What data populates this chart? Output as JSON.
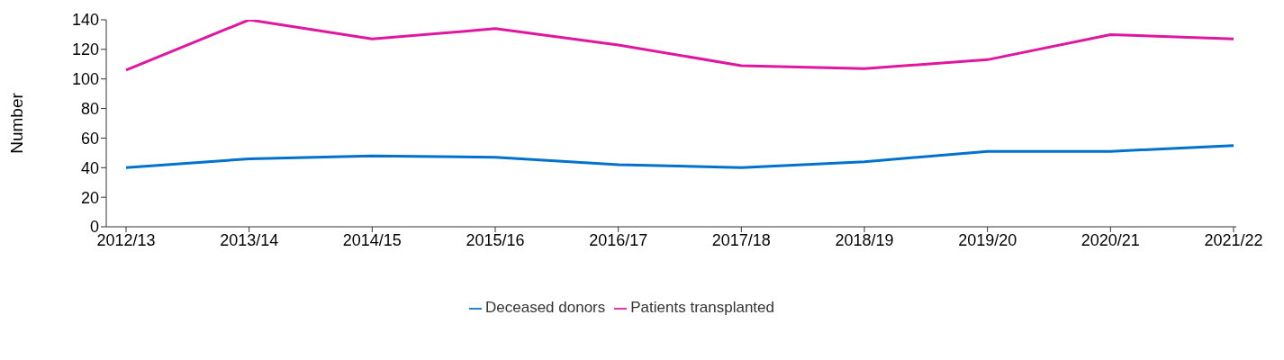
{
  "chart_data": {
    "type": "line",
    "ylabel": "Number",
    "categories": [
      "2012/13",
      "2013/14",
      "2014/15",
      "2015/16",
      "2016/17",
      "2017/18",
      "2018/19",
      "2019/20",
      "2020/21",
      "2021/22"
    ],
    "series": [
      {
        "name": "Deceased donors",
        "color": "#0072ce",
        "values": [
          40,
          46,
          48,
          47,
          42,
          40,
          44,
          51,
          51,
          55
        ]
      },
      {
        "name": "Patients transplanted",
        "color": "#e0169f",
        "values": [
          106,
          140,
          127,
          134,
          123,
          109,
          107,
          113,
          130,
          127
        ]
      }
    ],
    "ylim": [
      0,
      140
    ],
    "yticks": [
      0,
      20,
      40,
      60,
      80,
      100,
      120,
      140
    ],
    "grid": false,
    "legend": "bottom",
    "marker": "none",
    "line_style": "solid"
  }
}
